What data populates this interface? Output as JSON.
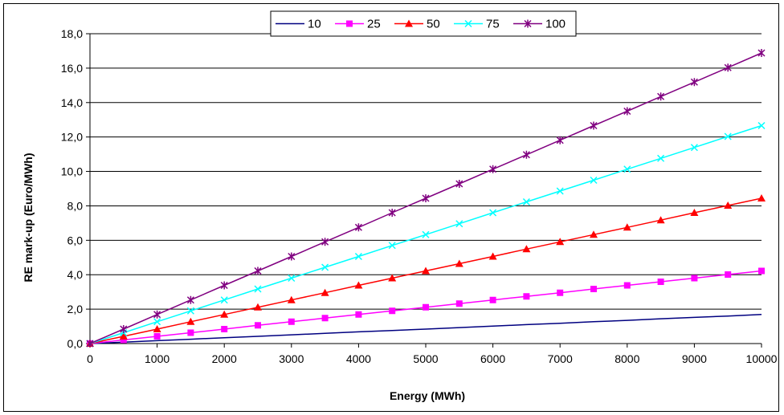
{
  "chart_data": {
    "type": "line",
    "xlabel": "Energy (MWh)",
    "ylabel": "RE mark-up (Euro/MWh)",
    "xlim": [
      0,
      10000
    ],
    "ylim": [
      0,
      18
    ],
    "x_ticks": [
      "0",
      "1000",
      "2000",
      "3000",
      "4000",
      "5000",
      "6000",
      "7000",
      "8000",
      "9000",
      "10000"
    ],
    "y_ticks": [
      "0,0",
      "2,0",
      "4,0",
      "6,0",
      "8,0",
      "10,0",
      "12,0",
      "14,0",
      "16,0",
      "18,0"
    ],
    "grid": "horizontal",
    "legend_position": "top-center",
    "x": [
      0,
      500,
      1000,
      1500,
      2000,
      2500,
      3000,
      3500,
      4000,
      4500,
      5000,
      5500,
      6000,
      6500,
      7000,
      7500,
      8000,
      8500,
      9000,
      9500,
      10000
    ],
    "series": [
      {
        "name": "10",
        "color": "#000080",
        "marker": "none",
        "values": [
          0,
          0.08,
          0.17,
          0.25,
          0.34,
          0.42,
          0.51,
          0.59,
          0.68,
          0.76,
          0.84,
          0.93,
          1.01,
          1.1,
          1.18,
          1.27,
          1.35,
          1.44,
          1.52,
          1.6,
          1.69
        ]
      },
      {
        "name": "25",
        "color": "#ff00ff",
        "marker": "square",
        "values": [
          0,
          0.21,
          0.42,
          0.63,
          0.84,
          1.06,
          1.27,
          1.48,
          1.69,
          1.9,
          2.11,
          2.32,
          2.53,
          2.74,
          2.95,
          3.17,
          3.38,
          3.59,
          3.8,
          4.01,
          4.22
        ]
      },
      {
        "name": "50",
        "color": "#ff0000",
        "marker": "triangle",
        "values": [
          0,
          0.42,
          0.84,
          1.27,
          1.69,
          2.11,
          2.53,
          2.95,
          3.38,
          3.8,
          4.22,
          4.64,
          5.06,
          5.49,
          5.91,
          6.33,
          6.75,
          7.17,
          7.6,
          8.02,
          8.44
        ]
      },
      {
        "name": "75",
        "color": "#00ffff",
        "marker": "x",
        "values": [
          0,
          0.63,
          1.27,
          1.9,
          2.53,
          3.17,
          3.8,
          4.43,
          5.06,
          5.7,
          6.33,
          6.96,
          7.6,
          8.23,
          8.86,
          9.49,
          10.13,
          10.76,
          11.39,
          12.03,
          12.66
        ]
      },
      {
        "name": "100",
        "color": "#800080",
        "marker": "star",
        "values": [
          0,
          0.84,
          1.69,
          2.53,
          3.38,
          4.22,
          5.06,
          5.91,
          6.75,
          7.6,
          8.44,
          9.28,
          10.13,
          10.97,
          11.81,
          12.66,
          13.5,
          14.35,
          15.19,
          16.03,
          16.88
        ]
      }
    ]
  }
}
